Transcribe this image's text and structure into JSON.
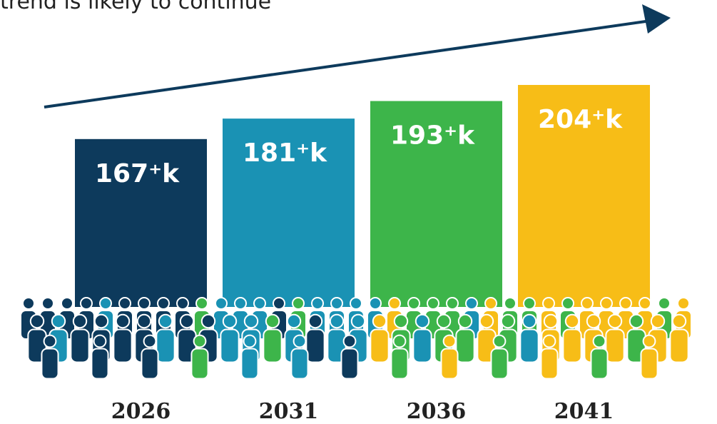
{
  "chart_data": {
    "type": "bar",
    "title": "trend is likely to continue",
    "categories": [
      "2026",
      "2031",
      "2036",
      "2041"
    ],
    "values": [
      167,
      181,
      193,
      204
    ],
    "value_labels": [
      "167⁺k",
      "181⁺k",
      "193⁺k",
      "204⁺k"
    ],
    "colors": [
      "#0d3a5c",
      "#1a92b4",
      "#3db54a",
      "#f7bd17"
    ]
  }
}
